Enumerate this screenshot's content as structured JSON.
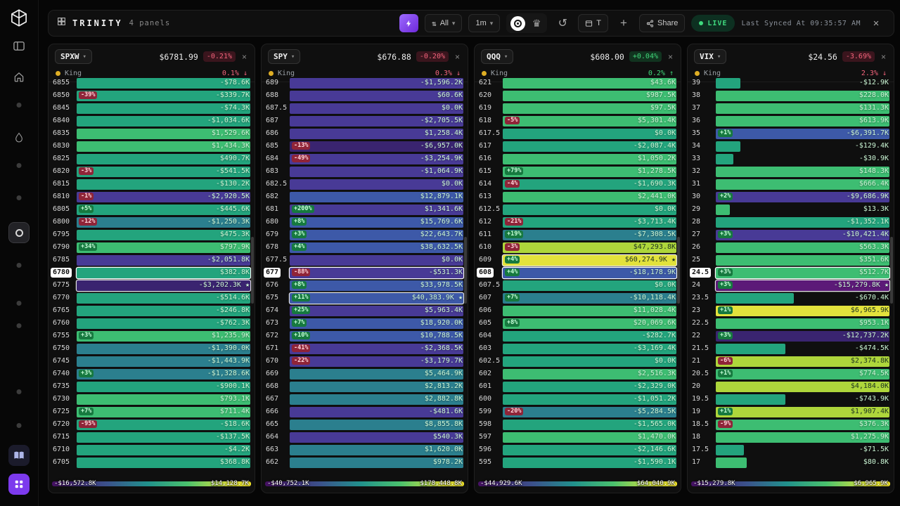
{
  "topbar": {
    "brand": "TRINITY",
    "panels_count": "4 panels",
    "filter_label": "All",
    "timeframe_label": "1m",
    "mode_toggle_label": "T",
    "plus_label": "+",
    "share_label": "Share",
    "live_label": "LIVE",
    "last_synced": "Last Synced At 09:35:57 AM",
    "close_label": "×"
  },
  "icons": {
    "sort_icon": "⇅",
    "chevron_down_icon": "▾",
    "crown_icon": "♛",
    "history_icon": "↺",
    "close_icon": "×",
    "arrow_up": "↑",
    "arrow_down": "↓",
    "star_marker": "★"
  },
  "colors": {
    "accent_purple": "#7c3aed",
    "live_green": "#3fd97e",
    "down_red": "#f4647c",
    "up_green": "#41d87a",
    "king_dot": "#dfae24",
    "tones": {
      "teal": "#23a47d",
      "tealblue": "#2b7f8e",
      "green": "#3dbd72",
      "lime": "#aed63b",
      "yellow": "#e3e23c",
      "blue": "#3d59a8",
      "purple": "#483a96",
      "purpledark": "#3a2470",
      "magenta": "#5c1a78"
    }
  },
  "row_fields": [
    "strike",
    "badge",
    "value",
    "tone",
    "width_pct",
    "mark"
  ],
  "panels": [
    {
      "ticker": "SPXW",
      "price": "$6781.99",
      "change": "-0.21%",
      "dir": "down",
      "king": {
        "label": "King",
        "pct": "0.1%",
        "dir": "down"
      },
      "scale_min": "-$16,572.8K",
      "scale_max": "$14,128.7K",
      "rows": [
        [
          "6855",
          "",
          "-$78.6K",
          "teal",
          100,
          ""
        ],
        [
          "6850",
          "-39%",
          "-$339.7K",
          "teal",
          100,
          ""
        ],
        [
          "6845",
          "",
          "-$74.3K",
          "teal",
          100,
          ""
        ],
        [
          "6840",
          "",
          "-$1,034.6K",
          "teal",
          100,
          ""
        ],
        [
          "6835",
          "",
          "$1,529.6K",
          "green",
          100,
          ""
        ],
        [
          "6830",
          "",
          "$1,434.3K",
          "green",
          100,
          ""
        ],
        [
          "6825",
          "",
          "$490.7K",
          "teal",
          100,
          ""
        ],
        [
          "6820",
          "-3%",
          "-$541.5K",
          "teal",
          100,
          ""
        ],
        [
          "6815",
          "",
          "-$130.2K",
          "teal",
          100,
          ""
        ],
        [
          "6810",
          "-1%",
          "-$2,920.5K",
          "purple",
          100,
          ""
        ],
        [
          "6805",
          "+5%",
          "-$445.6K",
          "teal",
          100,
          ""
        ],
        [
          "6800",
          "-12%",
          "-$1,250.3K",
          "tealblue",
          100,
          ""
        ],
        [
          "6795",
          "",
          "$475.3K",
          "teal",
          100,
          ""
        ],
        [
          "6790",
          "+34%",
          "$797.9K",
          "green",
          100,
          ""
        ],
        [
          "6785",
          "",
          "-$2,051.8K",
          "purple",
          100,
          ""
        ],
        [
          "6780",
          "",
          "$382.8K",
          "teal",
          100,
          "current"
        ],
        [
          "6775",
          "",
          "-$3,202.3K",
          "purpledark",
          100,
          "star"
        ],
        [
          "6770",
          "",
          "-$514.6K",
          "teal",
          100,
          ""
        ],
        [
          "6765",
          "",
          "-$246.8K",
          "teal",
          100,
          ""
        ],
        [
          "6760",
          "",
          "-$762.3K",
          "teal",
          100,
          ""
        ],
        [
          "6755",
          "+3%",
          "$1,235.9K",
          "green",
          100,
          ""
        ],
        [
          "6750",
          "",
          "-$1,390.0K",
          "tealblue",
          100,
          ""
        ],
        [
          "6745",
          "",
          "-$1,443.9K",
          "tealblue",
          100,
          ""
        ],
        [
          "6740",
          "+3%",
          "-$1,328.6K",
          "tealblue",
          100,
          ""
        ],
        [
          "6735",
          "",
          "-$900.1K",
          "teal",
          100,
          ""
        ],
        [
          "6730",
          "",
          "$793.1K",
          "green",
          100,
          ""
        ],
        [
          "6725",
          "+7%",
          "$711.4K",
          "green",
          100,
          ""
        ],
        [
          "6720",
          "-95%",
          "-$18.6K",
          "teal",
          100,
          ""
        ],
        [
          "6715",
          "",
          "-$137.5K",
          "teal",
          100,
          ""
        ],
        [
          "6710",
          "",
          "-$4.2K",
          "teal",
          100,
          ""
        ],
        [
          "6705",
          "",
          "$368.8K",
          "teal",
          100,
          ""
        ]
      ]
    },
    {
      "ticker": "SPY",
      "price": "$676.88",
      "change": "-0.20%",
      "dir": "down",
      "king": {
        "label": "King",
        "pct": "0.3%",
        "dir": "down"
      },
      "scale_min": "-$40,752.1K",
      "scale_max": "$178,448.8K",
      "rows": [
        [
          "689",
          "",
          "-$1,596.2K",
          "purple",
          100,
          ""
        ],
        [
          "688",
          "",
          "$60.6K",
          "purple",
          100,
          ""
        ],
        [
          "687.5",
          "",
          "$0.0K",
          "purple",
          100,
          ""
        ],
        [
          "687",
          "",
          "-$2,705.5K",
          "purple",
          100,
          ""
        ],
        [
          "686",
          "",
          "$1,258.4K",
          "purple",
          100,
          ""
        ],
        [
          "685",
          "-13%",
          "-$6,957.0K",
          "purpledark",
          100,
          ""
        ],
        [
          "684",
          "-49%",
          "-$3,254.9K",
          "purple",
          100,
          ""
        ],
        [
          "683",
          "",
          "-$1,064.9K",
          "purple",
          100,
          ""
        ],
        [
          "682.5",
          "",
          "$0.0K",
          "purple",
          100,
          ""
        ],
        [
          "682",
          "",
          "$12,879.1K",
          "blue",
          100,
          ""
        ],
        [
          "681",
          "+200%",
          "$1,341.6K",
          "purple",
          100,
          ""
        ],
        [
          "680",
          "+8%",
          "$15,769.6K",
          "blue",
          100,
          ""
        ],
        [
          "679",
          "+3%",
          "$22,643.7K",
          "blue",
          100,
          ""
        ],
        [
          "678",
          "+4%",
          "$38,632.5K",
          "blue",
          100,
          ""
        ],
        [
          "677.5",
          "",
          "$0.0K",
          "purple",
          100,
          ""
        ],
        [
          "677",
          "-88%",
          "-$531.3K",
          "purple",
          100,
          "current"
        ],
        [
          "676",
          "+8%",
          "$33,978.5K",
          "blue",
          100,
          ""
        ],
        [
          "675",
          "+11%",
          "$40,383.9K",
          "blue",
          100,
          "star"
        ],
        [
          "674",
          "+25%",
          "$5,963.4K",
          "purple",
          100,
          ""
        ],
        [
          "673",
          "+7%",
          "$18,920.0K",
          "blue",
          100,
          ""
        ],
        [
          "672",
          "+10%",
          "$10,788.5K",
          "blue",
          100,
          ""
        ],
        [
          "671",
          "-41%",
          "-$2,368.5K",
          "purple",
          100,
          ""
        ],
        [
          "670",
          "-22%",
          "-$3,179.7K",
          "purple",
          100,
          ""
        ],
        [
          "669",
          "",
          "$5,464.9K",
          "tealblue",
          100,
          ""
        ],
        [
          "668",
          "",
          "$2,813.2K",
          "tealblue",
          100,
          ""
        ],
        [
          "667",
          "",
          "$2,882.8K",
          "tealblue",
          100,
          ""
        ],
        [
          "666",
          "",
          "-$481.6K",
          "purple",
          100,
          ""
        ],
        [
          "665",
          "",
          "$8,855.8K",
          "tealblue",
          100,
          ""
        ],
        [
          "664",
          "",
          "$540.3K",
          "purple",
          100,
          ""
        ],
        [
          "663",
          "",
          "$1,620.0K",
          "tealblue",
          100,
          ""
        ],
        [
          "662",
          "",
          "$978.2K",
          "tealblue",
          100,
          ""
        ]
      ]
    },
    {
      "ticker": "QQQ",
      "price": "$608.00",
      "change": "+0.04%",
      "dir": "up",
      "king": {
        "label": "King",
        "pct": "0.2%",
        "dir": "up"
      },
      "scale_min": "-$44,929.6K",
      "scale_max": "$64,040.9K",
      "rows": [
        [
          "621",
          "",
          "$43.6K",
          "green",
          100,
          ""
        ],
        [
          "620",
          "",
          "$987.5K",
          "green",
          100,
          ""
        ],
        [
          "619",
          "",
          "$97.5K",
          "green",
          100,
          ""
        ],
        [
          "618",
          "-5%",
          "$5,301.4K",
          "green",
          100,
          ""
        ],
        [
          "617.5",
          "",
          "$0.0K",
          "teal",
          100,
          ""
        ],
        [
          "617",
          "",
          "-$2,087.4K",
          "teal",
          100,
          ""
        ],
        [
          "616",
          "",
          "$1,050.2K",
          "green",
          100,
          ""
        ],
        [
          "615",
          "+79%",
          "$1,278.5K",
          "green",
          100,
          ""
        ],
        [
          "614",
          "-4%",
          "-$1,690.3K",
          "teal",
          100,
          ""
        ],
        [
          "613",
          "",
          "$2,441.0K",
          "green",
          100,
          ""
        ],
        [
          "612.5",
          "",
          "$0.0K",
          "teal",
          100,
          ""
        ],
        [
          "612",
          "-21%",
          "-$3,713.4K",
          "teal",
          100,
          ""
        ],
        [
          "611",
          "+19%",
          "-$7,308.5K",
          "tealblue",
          100,
          ""
        ],
        [
          "610",
          "-3%",
          "$47,293.8K",
          "lime",
          100,
          ""
        ],
        [
          "609",
          "+4%",
          "$60,274.9K",
          "yellow",
          100,
          "star"
        ],
        [
          "608",
          "+4%",
          "-$18,178.9K",
          "blue",
          100,
          "current"
        ],
        [
          "607.5",
          "",
          "$0.0K",
          "teal",
          100,
          ""
        ],
        [
          "607",
          "+7%",
          "-$10,118.4K",
          "tealblue",
          100,
          ""
        ],
        [
          "606",
          "",
          "$11,028.4K",
          "green",
          100,
          ""
        ],
        [
          "605",
          "+8%",
          "$20,069.6K",
          "green",
          100,
          ""
        ],
        [
          "604",
          "",
          "-$282.7K",
          "teal",
          100,
          ""
        ],
        [
          "603",
          "",
          "-$3,169.4K",
          "teal",
          100,
          ""
        ],
        [
          "602.5",
          "",
          "$0.0K",
          "teal",
          100,
          ""
        ],
        [
          "602",
          "",
          "$2,516.3K",
          "green",
          100,
          ""
        ],
        [
          "601",
          "",
          "-$2,329.0K",
          "teal",
          100,
          ""
        ],
        [
          "600",
          "",
          "-$1,051.2K",
          "teal",
          100,
          ""
        ],
        [
          "599",
          "-20%",
          "-$5,284.5K",
          "tealblue",
          100,
          ""
        ],
        [
          "598",
          "",
          "-$1,565.0K",
          "teal",
          100,
          ""
        ],
        [
          "597",
          "",
          "$1,470.0K",
          "green",
          100,
          ""
        ],
        [
          "596",
          "",
          "-$2,146.6K",
          "teal",
          100,
          ""
        ],
        [
          "595",
          "",
          "-$1,590.1K",
          "teal",
          100,
          ""
        ]
      ]
    },
    {
      "ticker": "VIX",
      "price": "$24.56",
      "change": "-3.69%",
      "dir": "down",
      "king": {
        "label": "King",
        "pct": "2.3%",
        "dir": "down"
      },
      "scale_min": "-$15,279.8K",
      "scale_max": "$6,965.9K",
      "rows": [
        [
          "39",
          "",
          "-$12.9K",
          "teal",
          14,
          ""
        ],
        [
          "38",
          "",
          "$228.0K",
          "green",
          100,
          ""
        ],
        [
          "37",
          "",
          "$131.3K",
          "green",
          100,
          ""
        ],
        [
          "36",
          "",
          "$613.9K",
          "green",
          100,
          ""
        ],
        [
          "35",
          "+1%",
          "-$6,391.7K",
          "blue",
          100,
          ""
        ],
        [
          "34",
          "",
          "-$129.4K",
          "teal",
          14,
          ""
        ],
        [
          "33",
          "",
          "-$30.9K",
          "teal",
          10,
          ""
        ],
        [
          "32",
          "",
          "$148.3K",
          "green",
          100,
          ""
        ],
        [
          "31",
          "",
          "$666.4K",
          "green",
          100,
          ""
        ],
        [
          "30",
          "+2%",
          "-$9,686.9K",
          "purple",
          100,
          ""
        ],
        [
          "29",
          "",
          "$13.3K",
          "green",
          8,
          ""
        ],
        [
          "28",
          "",
          "-$1,352.1K",
          "teal",
          100,
          ""
        ],
        [
          "27",
          "+3%",
          "-$10,421.4K",
          "purple",
          100,
          ""
        ],
        [
          "26",
          "",
          "$563.3K",
          "green",
          100,
          ""
        ],
        [
          "25",
          "",
          "$351.6K",
          "green",
          100,
          ""
        ],
        [
          "24.5",
          "+3%",
          "$512.7K",
          "green",
          100,
          "current"
        ],
        [
          "24",
          "+3%",
          "-$15,279.8K",
          "magenta",
          100,
          "star"
        ],
        [
          "23.5",
          "",
          "-$670.4K",
          "teal",
          45,
          ""
        ],
        [
          "23",
          "+1%",
          "$6,965.9K",
          "yellow",
          100,
          ""
        ],
        [
          "22.5",
          "",
          "$953.1K",
          "green",
          100,
          ""
        ],
        [
          "22",
          "+3%",
          "-$12,737.2K",
          "purpledark",
          100,
          ""
        ],
        [
          "21.5",
          "",
          "-$474.5K",
          "teal",
          40,
          ""
        ],
        [
          "21",
          "-6%",
          "$2,374.8K",
          "lime",
          100,
          ""
        ],
        [
          "20.5",
          "+1%",
          "$774.5K",
          "green",
          100,
          ""
        ],
        [
          "20",
          "",
          "$4,184.0K",
          "lime",
          100,
          ""
        ],
        [
          "19.5",
          "",
          "-$743.9K",
          "teal",
          40,
          ""
        ],
        [
          "19",
          "+1%",
          "$1,907.4K",
          "lime",
          100,
          ""
        ],
        [
          "18.5",
          "-9%",
          "$376.3K",
          "green",
          100,
          ""
        ],
        [
          "18",
          "",
          "$1,275.9K",
          "green",
          100,
          ""
        ],
        [
          "17.5",
          "",
          "-$71.5K",
          "teal",
          16,
          ""
        ],
        [
          "17",
          "",
          "$80.8K",
          "green",
          18,
          ""
        ]
      ]
    }
  ]
}
